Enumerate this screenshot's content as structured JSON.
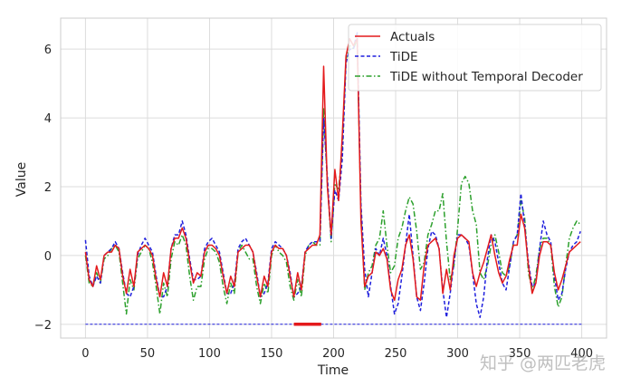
{
  "chart_data": {
    "type": "line",
    "title": "",
    "xlabel": "Time",
    "ylabel": "Value",
    "xlim": [
      -20,
      420
    ],
    "ylim": [
      -2.4,
      6.9
    ],
    "xticks": [
      0,
      50,
      100,
      150,
      200,
      250,
      300,
      350,
      400
    ],
    "yticks": [
      -2,
      0,
      2,
      4,
      6
    ],
    "ytick_labels": [
      "−2",
      "0",
      "2",
      "4",
      "6"
    ],
    "grid": true,
    "legend_position": "upper right",
    "legend": [
      "Actuals",
      "TiDE",
      "TiDE without Temporal Decoder"
    ],
    "x": [
      0,
      3,
      6,
      9,
      12,
      15,
      18,
      21,
      24,
      27,
      30,
      33,
      36,
      39,
      42,
      45,
      48,
      51,
      54,
      57,
      60,
      63,
      66,
      69,
      72,
      75,
      78,
      81,
      84,
      87,
      90,
      93,
      96,
      99,
      102,
      105,
      108,
      111,
      114,
      117,
      120,
      123,
      126,
      129,
      132,
      135,
      138,
      141,
      144,
      147,
      150,
      153,
      156,
      159,
      162,
      165,
      168,
      171,
      174,
      177,
      180,
      183,
      186,
      189,
      192,
      195,
      198,
      201,
      204,
      207,
      210,
      213,
      216,
      219,
      222,
      225,
      228,
      231,
      234,
      237,
      240,
      243,
      246,
      249,
      252,
      255,
      258,
      261,
      264,
      267,
      270,
      273,
      276,
      279,
      282,
      285,
      288,
      291,
      294,
      297,
      300,
      303,
      306,
      309,
      312,
      315,
      318,
      321,
      324,
      327,
      330,
      333,
      336,
      339,
      342,
      345,
      348,
      351,
      354,
      357,
      360,
      363,
      366,
      369,
      372,
      375,
      378,
      381,
      384,
      387,
      390,
      393,
      396,
      399
    ],
    "series": [
      {
        "name": "Actuals",
        "color": "#e41a1c",
        "style": "solid",
        "values": [
          0.1,
          -0.7,
          -0.9,
          -0.3,
          -0.7,
          0.0,
          0.1,
          0.1,
          0.3,
          0.2,
          -0.6,
          -1.1,
          -0.4,
          -0.9,
          0.1,
          0.2,
          0.3,
          0.2,
          0.0,
          -0.7,
          -1.2,
          -0.5,
          -0.9,
          0.2,
          0.5,
          0.5,
          0.8,
          0.5,
          -0.2,
          -0.8,
          -0.5,
          -0.6,
          0.1,
          0.3,
          0.3,
          0.2,
          0.0,
          -0.6,
          -1.1,
          -0.6,
          -0.9,
          0.1,
          0.2,
          0.3,
          0.3,
          0.1,
          -0.6,
          -1.2,
          -0.6,
          -0.9,
          0.1,
          0.3,
          0.2,
          0.2,
          0.0,
          -0.6,
          -1.2,
          -0.5,
          -1.0,
          0.1,
          0.2,
          0.3,
          0.3,
          0.6,
          5.5,
          2.0,
          0.6,
          2.5,
          1.6,
          3.5,
          5.8,
          6.3,
          6.1,
          6.3,
          1.0,
          -0.9,
          -0.6,
          -0.5,
          0.1,
          0.0,
          0.2,
          -0.1,
          -1.0,
          -1.3,
          -0.7,
          -0.4,
          0.3,
          0.6,
          -0.1,
          -1.2,
          -1.3,
          -0.3,
          0.3,
          0.4,
          0.5,
          0.2,
          -1.1,
          -0.4,
          -1.0,
          0.0,
          0.5,
          0.6,
          0.5,
          0.4,
          -0.5,
          -0.9,
          -0.5,
          -0.2,
          0.2,
          0.6,
          0.0,
          -0.5,
          -0.8,
          -0.6,
          -0.1,
          0.3,
          0.3,
          1.2,
          0.8,
          -0.3,
          -1.1,
          -0.8,
          0.0,
          0.4,
          0.4,
          0.3,
          -0.5,
          -1.0,
          -0.7,
          -0.3,
          0.1,
          0.2,
          0.3,
          0.4,
          -0.4,
          -1.0,
          -0.6,
          0.2,
          0.5
        ]
      },
      {
        "name": "TiDE",
        "color": "#1f1fdd",
        "style": "dashed",
        "values": [
          0.45,
          -0.6,
          -0.9,
          -0.6,
          -0.8,
          0.0,
          0.1,
          0.2,
          0.4,
          0.2,
          -0.5,
          -1.1,
          -1.2,
          -0.9,
          0.0,
          0.3,
          0.5,
          0.3,
          0.1,
          -0.6,
          -1.2,
          -1.2,
          -0.9,
          0.2,
          0.6,
          0.6,
          1.0,
          0.6,
          -0.1,
          -0.7,
          -0.7,
          -0.6,
          0.2,
          0.4,
          0.5,
          0.3,
          0.1,
          -0.5,
          -1.1,
          -1.1,
          -0.8,
          0.2,
          0.4,
          0.5,
          0.3,
          0.1,
          -0.5,
          -1.2,
          -1.1,
          -0.8,
          0.2,
          0.4,
          0.3,
          0.2,
          0.0,
          -0.5,
          -1.2,
          -1.1,
          -0.9,
          0.1,
          0.3,
          0.4,
          0.4,
          0.4,
          4.0,
          2.3,
          0.5,
          1.9,
          1.6,
          2.8,
          5.6,
          6.0,
          6.0,
          6.5,
          1.5,
          -0.4,
          -1.2,
          -0.5,
          0.2,
          0.0,
          0.5,
          0.0,
          -0.9,
          -1.7,
          -1.4,
          -0.6,
          0.3,
          1.2,
          0.0,
          -1.2,
          -1.6,
          -0.8,
          0.2,
          0.7,
          0.6,
          0.2,
          -1.0,
          -1.8,
          -1.1,
          -0.2,
          0.6,
          0.6,
          0.5,
          0.3,
          -0.5,
          -1.4,
          -1.8,
          -1.2,
          -0.1,
          0.6,
          0.4,
          -0.2,
          -0.8,
          -1.0,
          -0.3,
          0.4,
          0.6,
          1.8,
          0.9,
          -0.2,
          -0.9,
          -0.8,
          0.2,
          1.0,
          0.6,
          0.4,
          -0.6,
          -1.3,
          -1.1,
          -0.4,
          0.1,
          0.3,
          0.4,
          0.7,
          -0.6,
          -1.5,
          -0.9,
          0.1,
          0.3
        ]
      },
      {
        "name": "TiDE without Temporal Decoder",
        "color": "#2ca02c",
        "style": "dashdot",
        "values": [
          0.0,
          -0.8,
          -0.9,
          -0.5,
          -0.8,
          -0.1,
          0.0,
          0.2,
          0.3,
          0.1,
          -0.8,
          -1.7,
          -0.7,
          -1.0,
          -0.1,
          0.1,
          0.3,
          0.2,
          -0.2,
          -0.9,
          -1.7,
          -0.8,
          -1.2,
          -0.1,
          0.4,
          0.3,
          0.6,
          0.3,
          -0.6,
          -1.3,
          -0.9,
          -0.9,
          -0.1,
          0.2,
          0.2,
          0.1,
          -0.2,
          -0.9,
          -1.4,
          -0.8,
          -1.1,
          0.1,
          0.3,
          0.1,
          -0.1,
          -0.1,
          -0.9,
          -1.4,
          -0.8,
          -1.1,
          0.0,
          0.3,
          0.1,
          0.0,
          -0.2,
          -0.9,
          -1.3,
          -0.7,
          -1.2,
          0.0,
          0.3,
          0.4,
          0.3,
          0.3,
          4.3,
          2.1,
          0.4,
          2.1,
          1.9,
          3.1,
          5.7,
          6.1,
          6.0,
          6.3,
          1.3,
          -1.0,
          -0.5,
          -0.3,
          0.3,
          0.5,
          1.3,
          0.3,
          -0.5,
          -0.3,
          0.5,
          0.8,
          1.3,
          1.7,
          1.5,
          0.7,
          -0.4,
          -0.2,
          0.6,
          0.9,
          1.3,
          1.3,
          1.8,
          0.4,
          -0.7,
          -0.3,
          0.8,
          2.1,
          2.3,
          2.1,
          1.3,
          0.9,
          -0.5,
          -0.7,
          -0.3,
          0.3,
          0.6,
          0.1,
          -0.5,
          -0.6,
          -0.3,
          0.4,
          0.6,
          1.6,
          1.1,
          -0.5,
          -1.0,
          -0.6,
          0.2,
          0.5,
          0.5,
          0.3,
          -0.9,
          -1.5,
          -1.2,
          -0.3,
          0.5,
          0.8,
          1.0,
          0.9,
          -0.3,
          -0.9,
          -0.3,
          0.4,
          0.7
        ]
      },
      {
        "name": "baseline",
        "color": "#1f1fdd",
        "style": "dashed-thin",
        "x": [
          0,
          400
        ],
        "values": [
          -2.0,
          -2.0
        ]
      },
      {
        "name": "highlight-segment",
        "color": "#e41a1c",
        "style": "thick",
        "x": [
          168,
          190
        ],
        "values": [
          -2.0,
          -2.0
        ]
      }
    ]
  },
  "watermark": "知乎 @两匹老虎"
}
